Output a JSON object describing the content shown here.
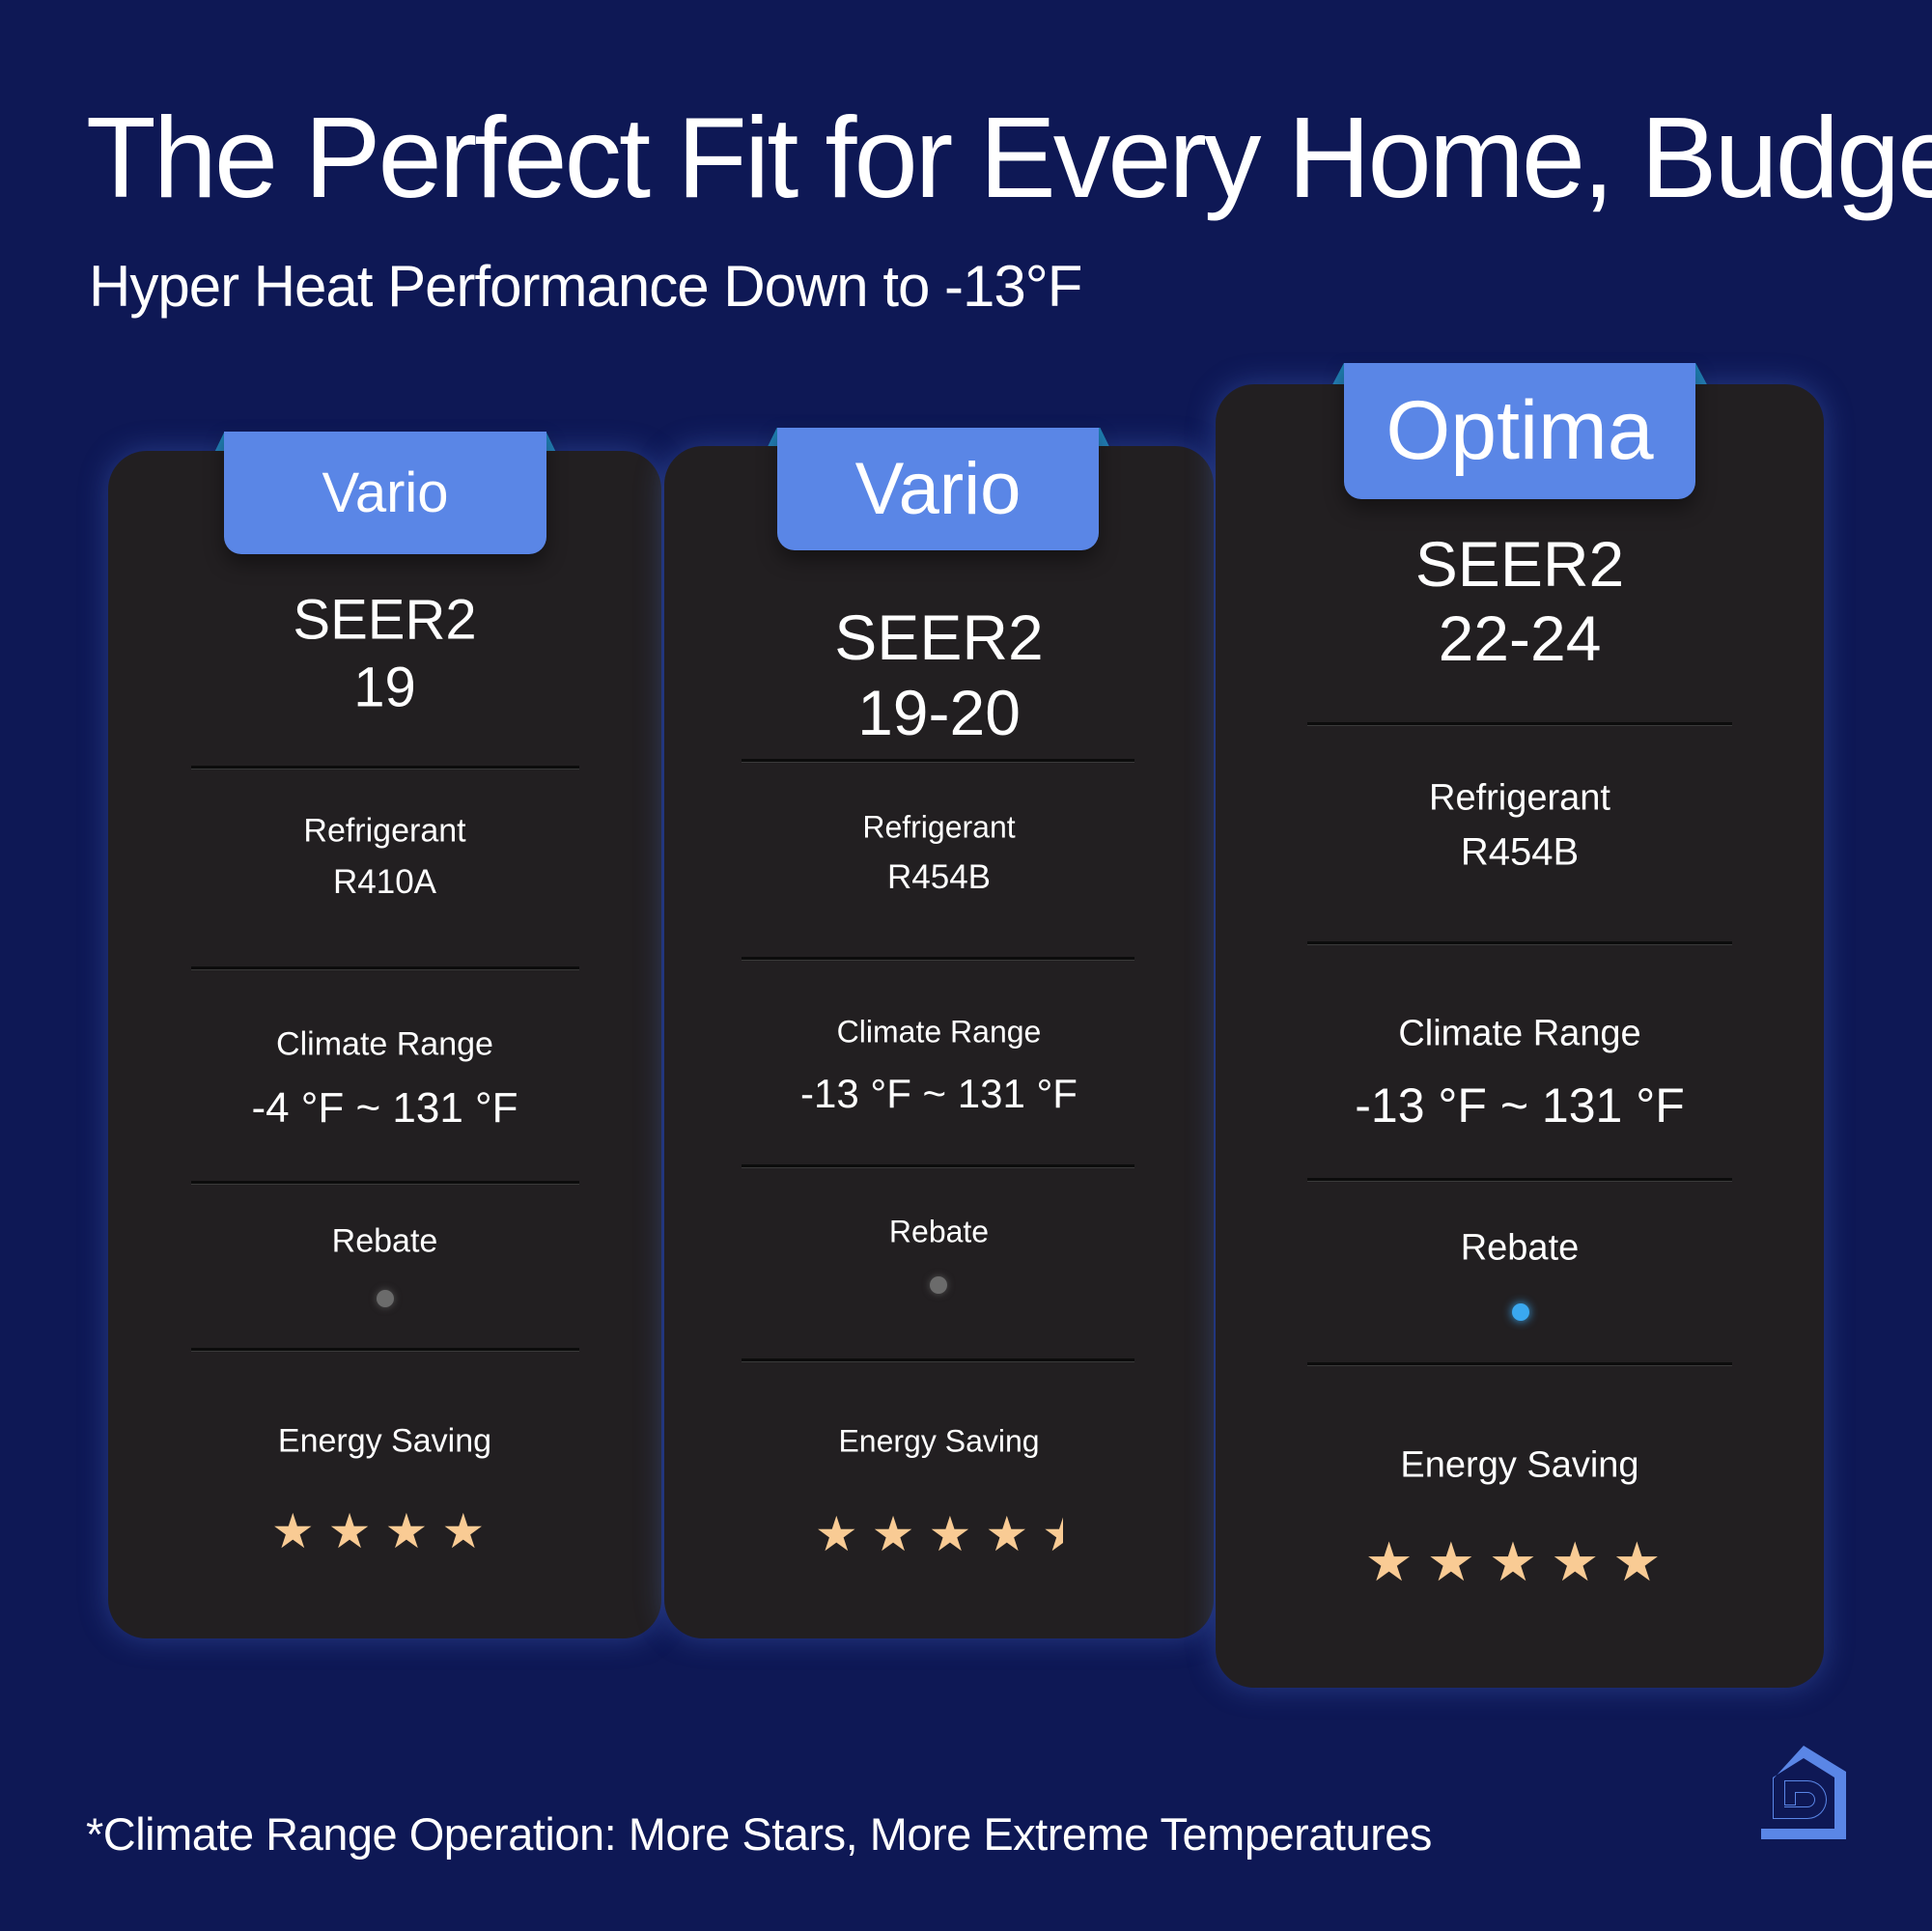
{
  "title": "The Perfect Fit for Every Home, Budget",
  "subtitle": "Hyper Heat Performance Down to -13°F",
  "footer": "*Climate Range Operation: More Stars, More Extreme Temperatures",
  "colors": {
    "background": "#0e1855",
    "card": "#221f21",
    "tab": "#5a86e6",
    "star": "#f9cb94",
    "rebate_active": "#3aa8f0",
    "rebate_inactive": "#6b6b6b"
  },
  "logo": {
    "icon": "house-d-logo-icon"
  },
  "cards": [
    {
      "tab": "Vario",
      "seer_label": "SEER2",
      "seer_value": "19",
      "refrigerant_label": "Refrigerant",
      "refrigerant_value": "R410A",
      "climate_label": "Climate Range",
      "climate_value": "-4 °F ~ 131 °F",
      "rebate_label": "Rebate",
      "rebate": false,
      "energy_label": "Energy Saving",
      "stars": 4
    },
    {
      "tab": "Vario",
      "seer_label": "SEER2",
      "seer_value": "19-20",
      "refrigerant_label": "Refrigerant",
      "refrigerant_value": "R454B",
      "climate_label": "Climate Range",
      "climate_value": "-13 °F ~ 131 °F",
      "rebate_label": "Rebate",
      "rebate": false,
      "energy_label": "Energy Saving",
      "stars": 4.5
    },
    {
      "tab": "Optima",
      "seer_label": "SEER2",
      "seer_value": "22-24",
      "refrigerant_label": "Refrigerant",
      "refrigerant_value": "R454B",
      "climate_label": "Climate Range",
      "climate_value": "-13 °F ~ 131 °F",
      "rebate_label": "Rebate",
      "rebate": true,
      "energy_label": "Energy Saving",
      "stars": 5
    }
  ]
}
